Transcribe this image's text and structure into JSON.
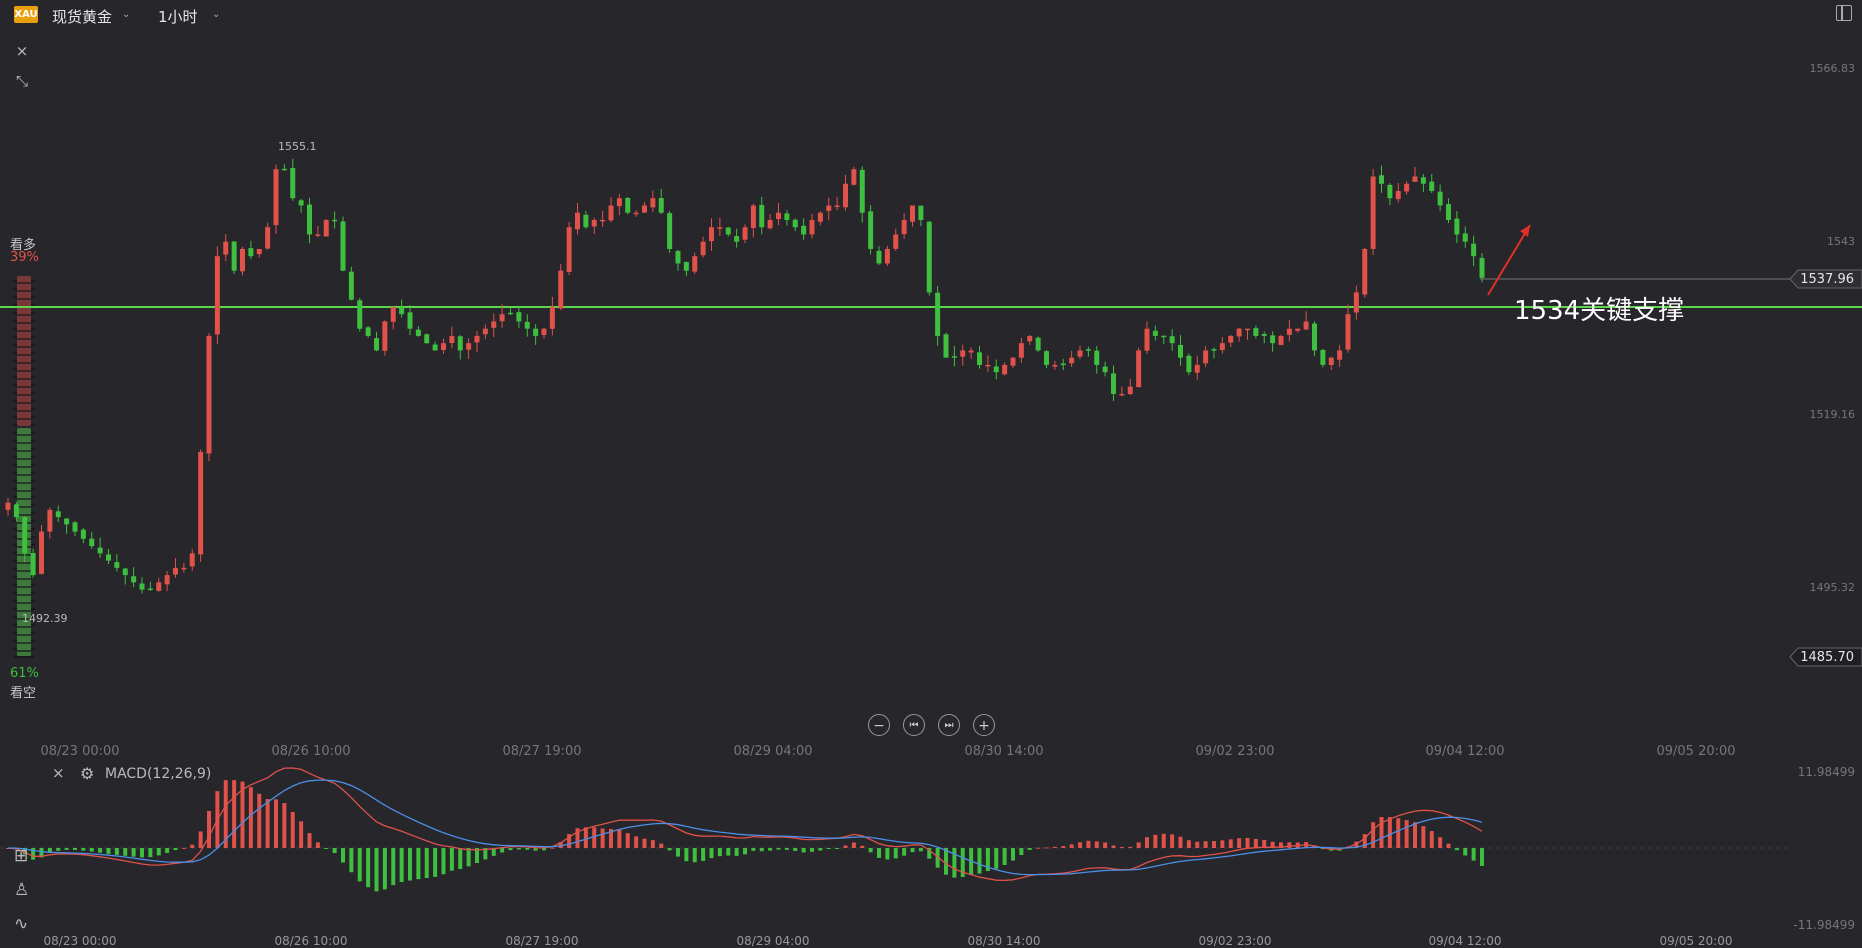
{
  "header": {
    "symbol_badge": "XAU",
    "symbol_name": "现货黄金",
    "period": "1小时"
  },
  "toolbar_left": {
    "close_icon": "×",
    "collapse_icon": "⤡"
  },
  "sentiment": {
    "bull_label": "看多",
    "bull_pct": "39%",
    "bear_pct": "61%",
    "bear_label": "看空"
  },
  "colors": {
    "background": "#26262b",
    "up": "#e0524a",
    "down": "#3fbf3f",
    "support_line": "#5cd64a",
    "dif_line": "#e0524a",
    "dea_line": "#4d8fe6"
  },
  "chart_data": {
    "type": "candlestick",
    "symbol": "现货黄金",
    "timeframe": "1小时",
    "price_axis_labels": [
      "1566.83",
      "1543",
      "1519.16",
      "1495.32"
    ],
    "ylim": [
      1485.7,
      1566.83
    ],
    "current_price": "1537.96",
    "crosshair_price": "1485.70",
    "high_label": "1555.1",
    "low_label": "1492.39",
    "time_labels": [
      "08/23 00:00",
      "08/26 10:00",
      "08/27 19:00",
      "08/29 04:00",
      "08/30 14:00",
      "09/02 23:00",
      "09/04 12:00",
      "09/05 20:00"
    ],
    "annotation": "1534关键支撑",
    "support_level": 1534,
    "closes": [
      1507,
      1505,
      1500,
      1497,
      1503,
      1506,
      1505,
      1504,
      1503,
      1502,
      1501,
      1500,
      1499,
      1498,
      1497,
      1496,
      1495,
      1495,
      1496,
      1497,
      1498,
      1498,
      1500,
      1514,
      1530,
      1541,
      1543,
      1539,
      1542,
      1541,
      1542,
      1545,
      1553,
      1553,
      1549,
      1548,
      1544,
      1544,
      1546,
      1546,
      1539,
      1535,
      1531,
      1530,
      1528,
      1532,
      1534,
      1533,
      1531,
      1530,
      1529,
      1528,
      1529,
      1530,
      1528,
      1529,
      1530,
      1531,
      1532,
      1533,
      1533,
      1532,
      1531,
      1530,
      1531,
      1534,
      1539,
      1545,
      1547,
      1545,
      1546,
      1546,
      1548,
      1549,
      1547,
      1547,
      1548,
      1549,
      1547,
      1542,
      1540,
      1539,
      1541,
      1543,
      1545,
      1545,
      1544,
      1543,
      1545,
      1548,
      1545,
      1546,
      1547,
      1546,
      1545,
      1544,
      1546,
      1547,
      1548,
      1548,
      1551,
      1553,
      1547,
      1542,
      1540,
      1542,
      1544,
      1546,
      1548,
      1546,
      1536,
      1530,
      1527,
      1527,
      1528,
      1528,
      1526,
      1526,
      1525,
      1526,
      1527,
      1529,
      1530,
      1528,
      1526,
      1526,
      1526,
      1527,
      1528,
      1528,
      1526,
      1525,
      1522,
      1522,
      1523,
      1528,
      1531,
      1530,
      1530,
      1529,
      1527,
      1525,
      1526,
      1528,
      1528,
      1529,
      1530,
      1531,
      1531,
      1530,
      1530,
      1529,
      1530,
      1531,
      1531,
      1532,
      1528,
      1526,
      1527,
      1528,
      1533,
      1536,
      1542,
      1552,
      1551,
      1549,
      1550,
      1551,
      1552,
      1551,
      1550,
      1548,
      1546,
      1544,
      1543,
      1541,
      1538
    ],
    "macd": {
      "axis_labels": [
        "11.98499",
        "-11.98499"
      ],
      "indicator_label": "MACD(12,26,9)"
    }
  },
  "bottom_tools": {
    "tool1": "⊞",
    "tool2": "♙",
    "tool3": "∿"
  },
  "zoom_controls": [
    "−",
    "⏮",
    "⏭",
    "+"
  ]
}
